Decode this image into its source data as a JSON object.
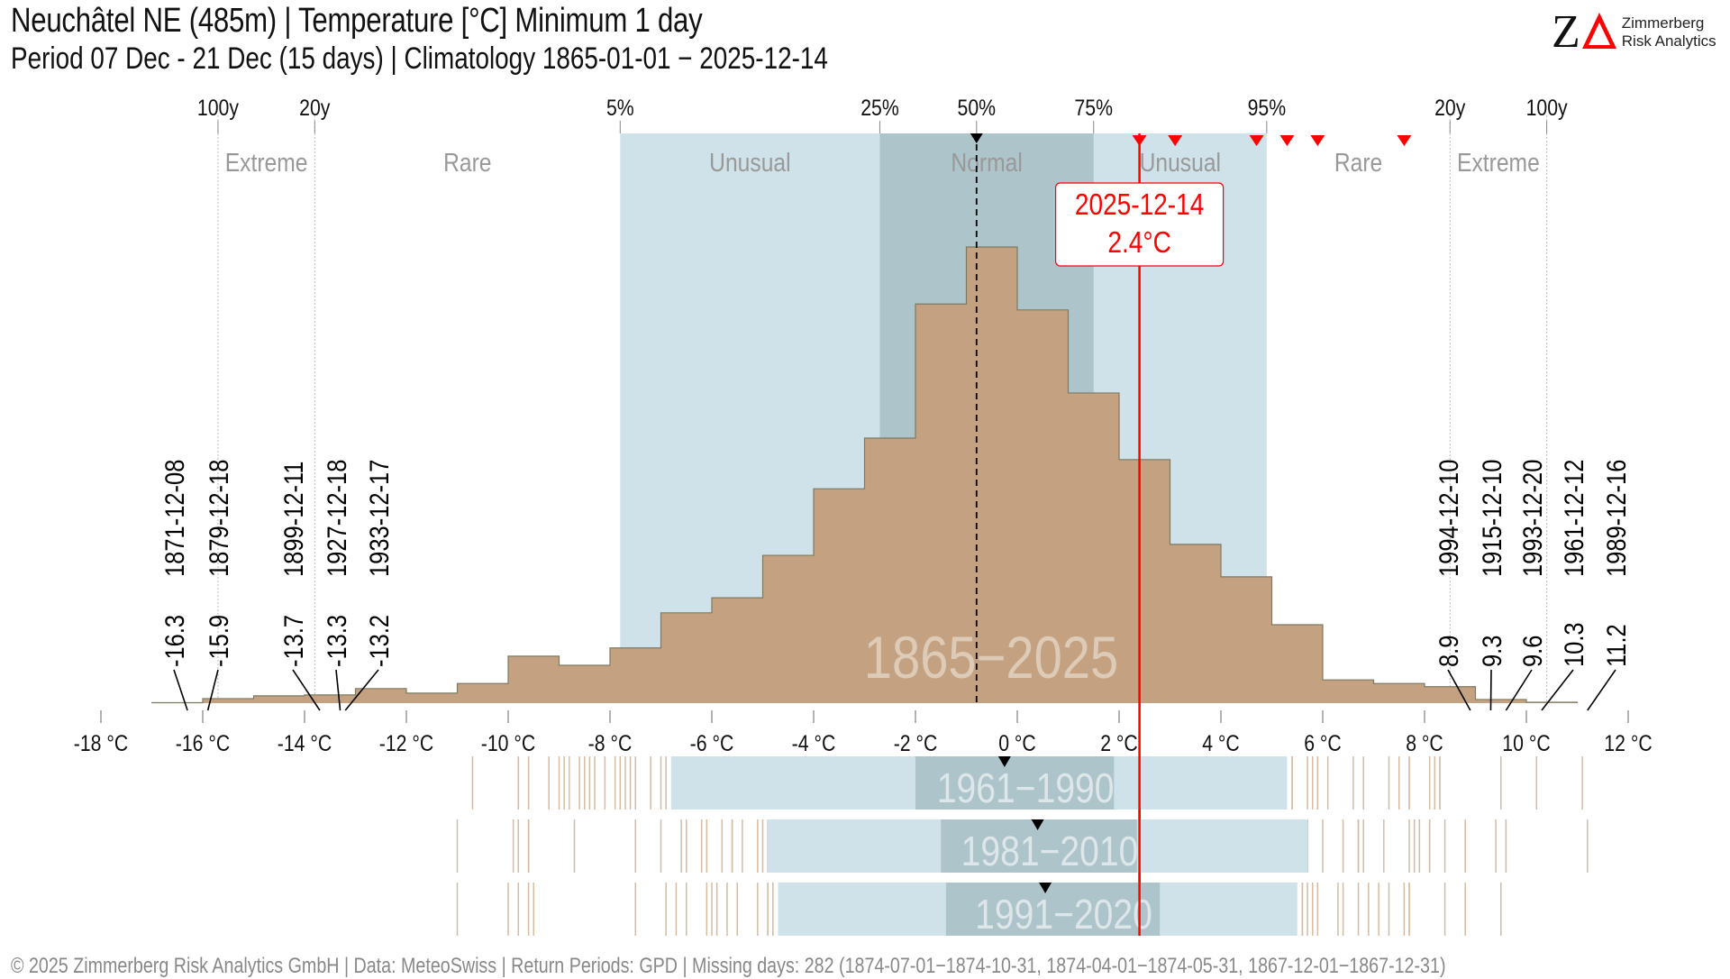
{
  "header": {
    "title": "Neuchâtel  NE (485m) | Temperature [°C] Minimum 1 day",
    "subtitle": "Period 07 Dec - 21 Dec (15 days) | Climatology 1865-01-01  − 2025-12-14"
  },
  "logo": {
    "mark_z": "Z",
    "line1": "Zimmerberg",
    "line2": "Risk Analytics",
    "accent_color": "#ff0000"
  },
  "footer": {
    "text": "©  2025 Zimmerberg Risk Analytics GmbH | Data: MeteoSwiss | Return Periods: GPD | Missing days: 282 (1874-07-01−1874-10-31, 1874-04-01−1874-05-31, 1867-12-01−1867-12-31)"
  },
  "colors": {
    "histogram_fill": "#c4a281",
    "histogram_stroke": "#7d7a62",
    "unusual_band": "#cfe2e9",
    "normal_band": "#aec4cb",
    "current_value": "#ff0000",
    "category_text": "#999999",
    "strip_tick": "#d4bca3"
  },
  "chart_data": {
    "type": "bar",
    "subtype": "histogram",
    "xlabel": "Temperature [°C]",
    "x_unit": "°C",
    "xlim": [
      -18,
      12
    ],
    "x_ticks": [
      -18,
      -16,
      -14,
      -12,
      -10,
      -8,
      -6,
      -4,
      -2,
      0,
      2,
      4,
      6,
      8,
      10,
      12
    ],
    "x_tick_labels": [
      "-18 °C",
      "-16 °C",
      "-14 °C",
      "-12 °C",
      "-10 °C",
      "-8 °C",
      "-6 °C",
      "-4 °C",
      "-2 °C",
      "0 °C",
      "2 °C",
      "4 °C",
      "6 °C",
      "8 °C",
      "10 °C",
      "12 °C"
    ],
    "bin_width": 1,
    "bins_start": [
      -17,
      -16,
      -15,
      -14,
      -13,
      -12,
      -11,
      -10,
      -9,
      -8,
      -7,
      -6,
      -5,
      -4,
      -3,
      -2,
      -1,
      0,
      1,
      2,
      3,
      4,
      5,
      6,
      7,
      8,
      9,
      10
    ],
    "relative_frequency": [
      0.1,
      1.0,
      1.6,
      1.8,
      3.2,
      2.2,
      4.3,
      10.3,
      8.3,
      12.1,
      19.8,
      23.1,
      32.4,
      47.0,
      58.1,
      87.5,
      100,
      86.2,
      68.0,
      53.4,
      34.8,
      27.7,
      17.2,
      5.1,
      4.3,
      3.6,
      0.8,
      0.2
    ],
    "frequency_note": "relative to highest bin (=100)",
    "period_label": "1865−2025",
    "median": -0.8,
    "quantile_bands": [
      {
        "label": "5%",
        "value": -7.8
      },
      {
        "label": "25%",
        "value": -2.7
      },
      {
        "label": "50%",
        "value": -0.8
      },
      {
        "label": "75%",
        "value": 1.5
      },
      {
        "label": "95%",
        "value": 4.9
      }
    ],
    "return_periods": [
      {
        "label": "100y",
        "value": -15.7
      },
      {
        "label": "20y",
        "value": -13.8
      },
      {
        "label": "20y",
        "value": 8.5
      },
      {
        "label": "100y",
        "value": 10.4
      }
    ],
    "categories": [
      {
        "label": "Extreme",
        "from": -15.7,
        "to": -13.8,
        "shade": "none"
      },
      {
        "label": "Rare",
        "from": -13.8,
        "to": -7.8,
        "shade": "none"
      },
      {
        "label": "Unusual",
        "from": -7.8,
        "to": -2.7,
        "shade": "unusual"
      },
      {
        "label": "Normal",
        "from": -2.7,
        "to": 1.5,
        "shade": "normal"
      },
      {
        "label": "Unusual",
        "from": 1.5,
        "to": 4.9,
        "shade": "unusual"
      },
      {
        "label": "Rare",
        "from": 4.9,
        "to": 8.5,
        "shade": "none"
      },
      {
        "label": "Extreme",
        "from": 8.5,
        "to": 10.4,
        "shade": "none"
      }
    ],
    "current": {
      "date": "2025-12-14",
      "value": 2.4,
      "label": "2.4°C"
    },
    "recent_markers": [
      2.4,
      3.1,
      4.7,
      5.3,
      5.9,
      7.6
    ],
    "record_lows": [
      {
        "date": "1871-12-08",
        "value": -16.3
      },
      {
        "date": "1879-12-18",
        "value": -15.9
      },
      {
        "date": "1899-12-11",
        "value": -13.7
      },
      {
        "date": "1927-12-18",
        "value": -13.3
      },
      {
        "date": "1933-12-17",
        "value": -13.2
      }
    ],
    "record_highs": [
      {
        "date": "1994-12-10",
        "value": 8.9
      },
      {
        "date": "1915-12-10",
        "value": 9.3
      },
      {
        "date": "1993-12-20",
        "value": 9.6
      },
      {
        "date": "1961-12-12",
        "value": 10.3
      },
      {
        "date": "1989-12-16",
        "value": 11.2
      }
    ],
    "reference_periods": [
      {
        "label": "1961−1990",
        "p05": -6.8,
        "p25": -2.0,
        "median": -0.25,
        "p75": 1.9,
        "p95": 5.3,
        "outliers_low": [
          -10.7,
          -9.8,
          -9.8,
          -9.6,
          -9.2,
          -9.0,
          -8.9,
          -8.8,
          -8.6,
          -8.5,
          -8.4,
          -8.3,
          -8.1,
          -7.9,
          -7.8,
          -7.7,
          -7.6,
          -7.5,
          -7.2,
          -7.0,
          -6.9
        ],
        "outliers_high": [
          5.4,
          5.4,
          5.7,
          5.8,
          5.9,
          5.9,
          6.1,
          6.6,
          6.8,
          7.3,
          7.5,
          7.7,
          7.7,
          8.1,
          8.2,
          8.3,
          8.3,
          9.5,
          10.2,
          11.1
        ]
      },
      {
        "label": "1981−2010",
        "p05": -4.9,
        "p25": -1.5,
        "median": 0.4,
        "p75": 2.35,
        "p95": 5.7,
        "outliers_low": [
          -11.0,
          -9.9,
          -9.8,
          -9.6,
          -9.6,
          -8.7,
          -7.5,
          -7.0,
          -6.6,
          -6.5,
          -6.2,
          -6.1,
          -5.8,
          -5.8,
          -5.6,
          -5.6,
          -5.4,
          -5.1,
          -5.0,
          -4.9
        ],
        "outliers_high": [
          5.7,
          6.0,
          6.4,
          6.7,
          6.7,
          6.8,
          7.2,
          7.7,
          7.8,
          7.9,
          8.1,
          8.1,
          8.4,
          8.8,
          9.4,
          9.6,
          11.2
        ]
      },
      {
        "label": "1991−2020",
        "p05": -4.7,
        "p25": -1.4,
        "median": 0.55,
        "p75": 2.8,
        "p95": 5.5,
        "outliers_low": [
          -11.0,
          -10.0,
          -9.8,
          -9.6,
          -9.5,
          -7.5,
          -6.9,
          -6.7,
          -6.5,
          -6.1,
          -6.0,
          -5.9,
          -5.7,
          -5.5,
          -5.1,
          -4.9,
          -4.9,
          -4.8
        ],
        "outliers_high": [
          5.6,
          5.6,
          5.7,
          5.8,
          5.9,
          6.3,
          6.4,
          6.7,
          6.9,
          7.1,
          7.3,
          7.6,
          7.7,
          7.7,
          8.4,
          8.8,
          9.5
        ]
      }
    ]
  }
}
